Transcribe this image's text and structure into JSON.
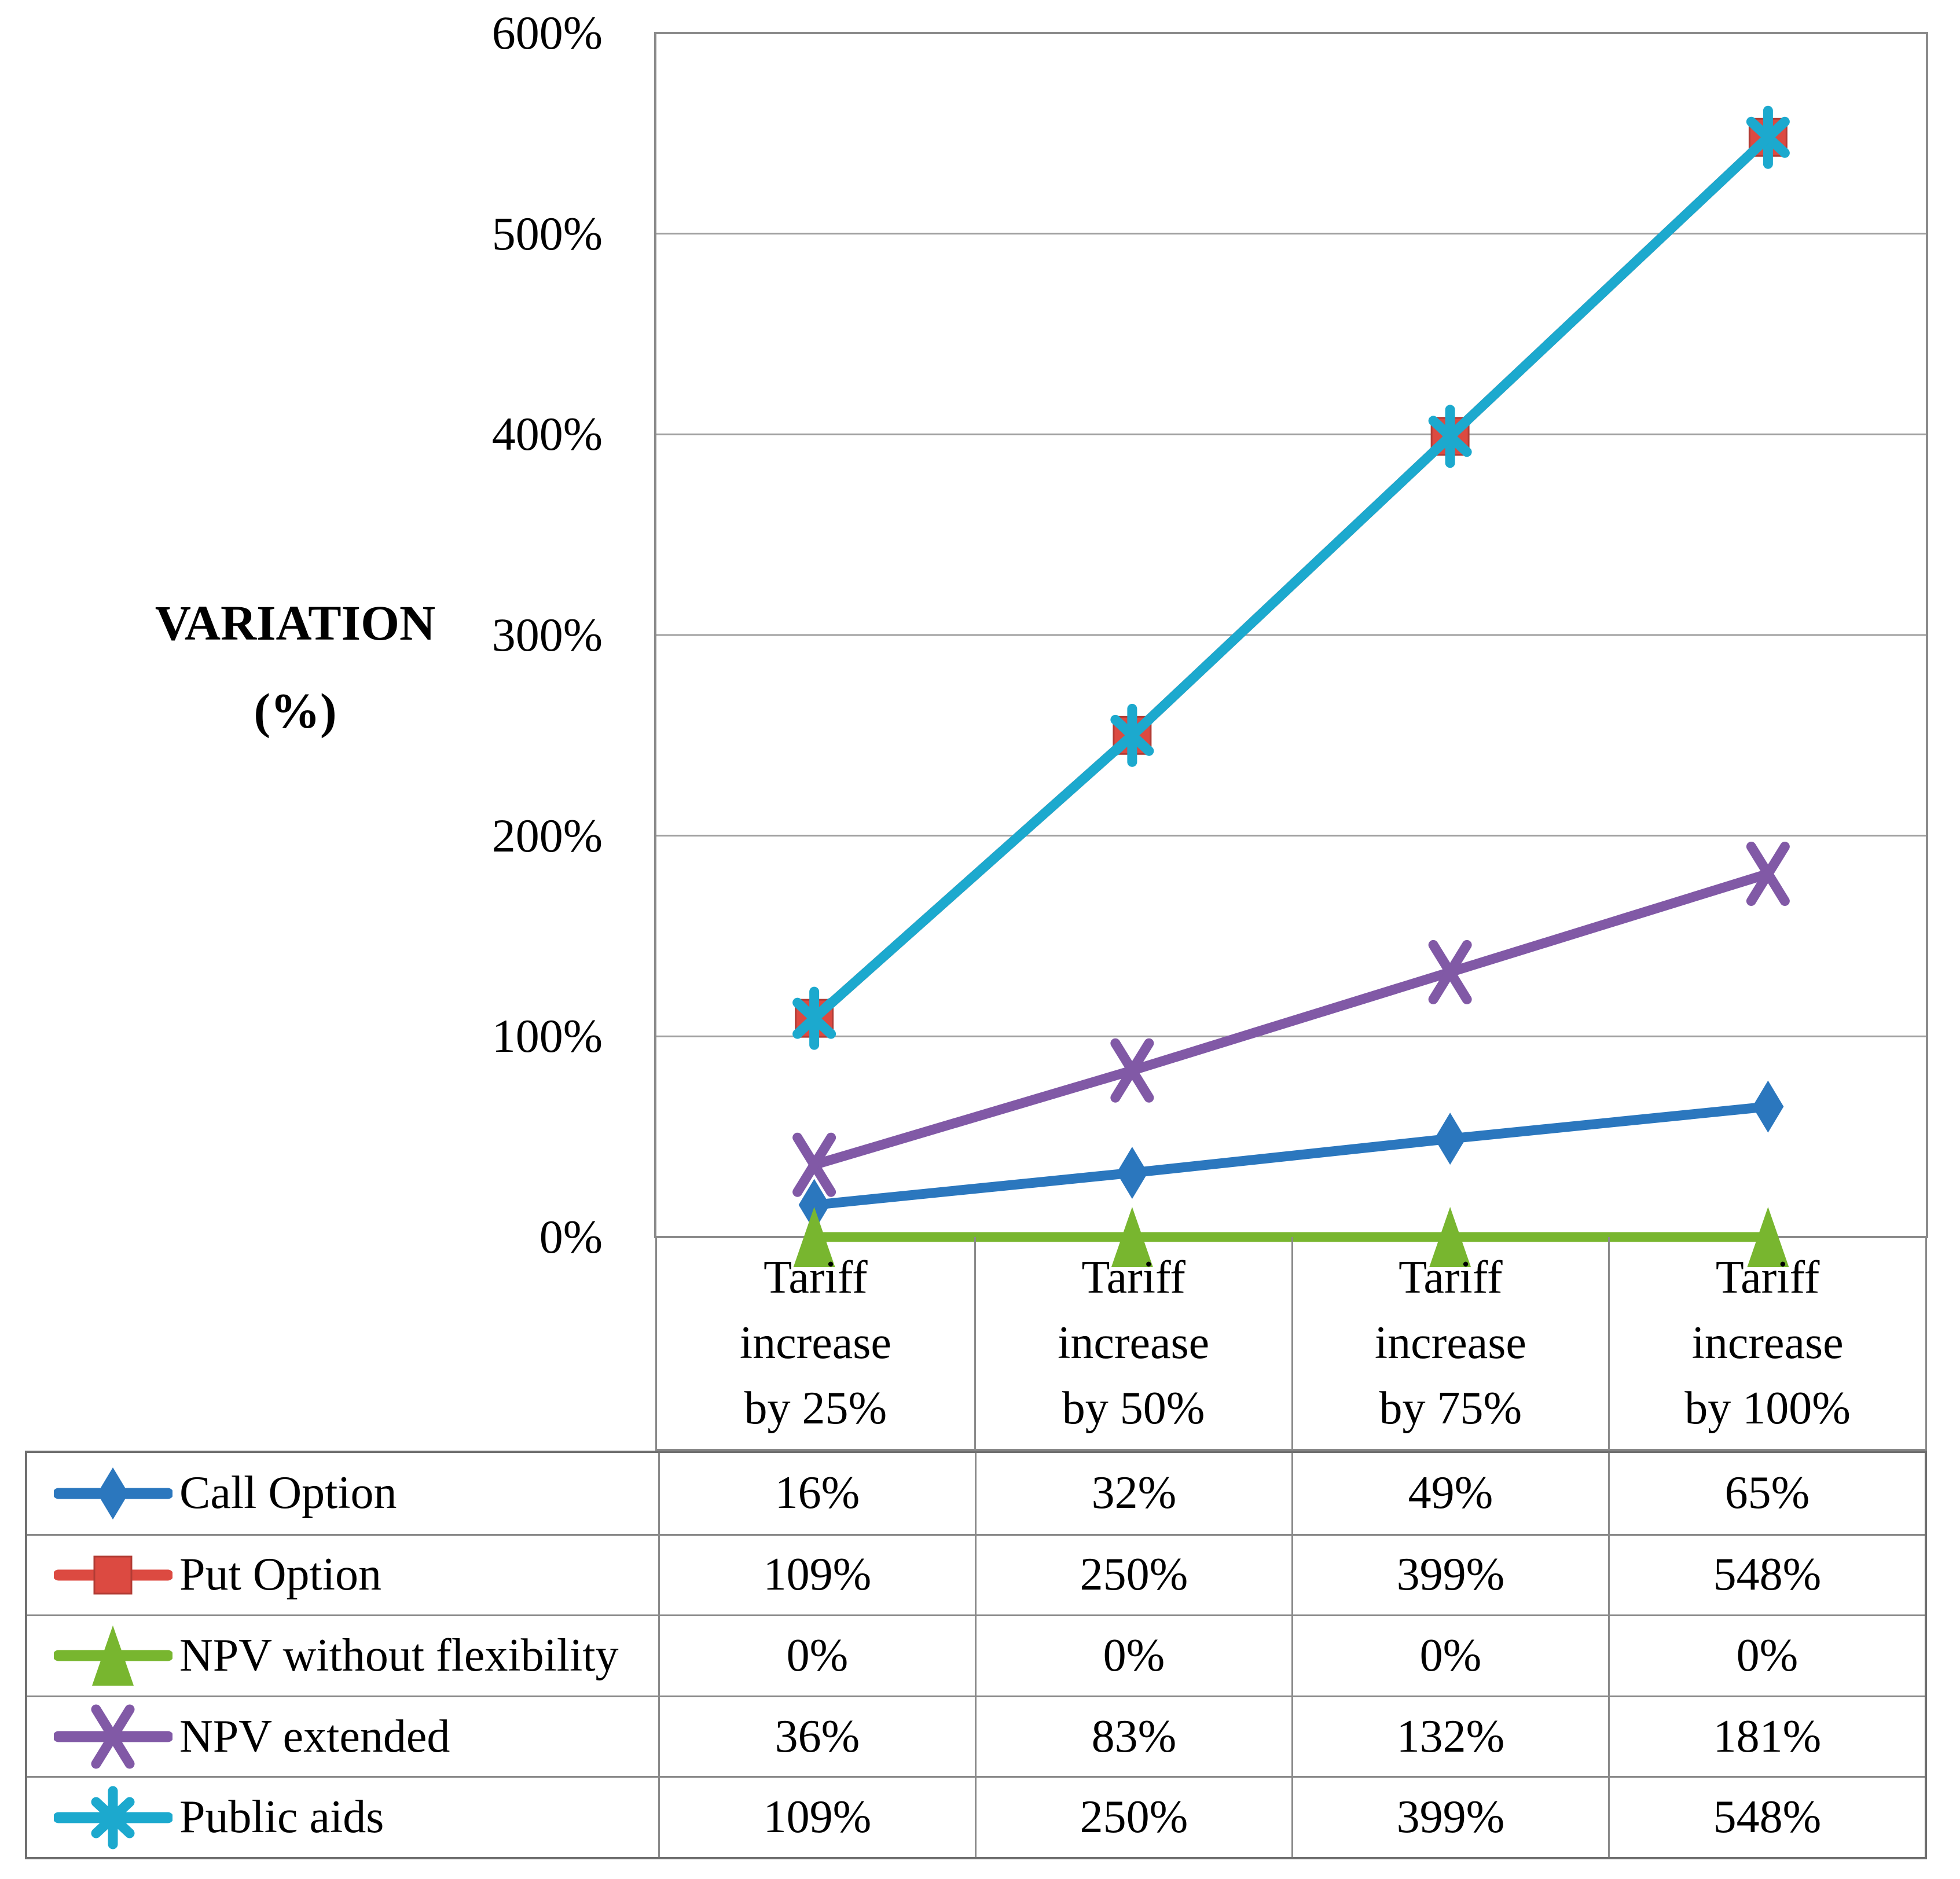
{
  "figure": {
    "axis_title_line1": "VARIATION",
    "axis_title_line2": "(%)"
  },
  "chart_data": {
    "type": "line",
    "title": "",
    "xlabel": "",
    "ylabel": "VARIATION (%)",
    "ylim": [
      0,
      600
    ],
    "y_tick_step": 100,
    "y_tick_labels": [
      "0%",
      "100%",
      "200%",
      "300%",
      "400%",
      "500%",
      "600%"
    ],
    "grid": "horizontal",
    "legend_position": "table-left",
    "categories": [
      "Tariff increase by 25%",
      "Tariff increase by 50%",
      "Tariff increase by 75%",
      "Tariff increase by 100%"
    ],
    "categories_lines": [
      [
        "Tariff",
        "increase",
        "by 25%"
      ],
      [
        "Tariff",
        "increase",
        "by 50%"
      ],
      [
        "Tariff",
        "increase",
        "by 75%"
      ],
      [
        "Tariff",
        "increase",
        "by 100%"
      ]
    ],
    "series": [
      {
        "name": "Call Option",
        "marker": "diamond",
        "color": "#2b77be",
        "values": [
          16,
          32,
          49,
          65
        ],
        "display_values": [
          "16%",
          "32%",
          "49%",
          "65%"
        ]
      },
      {
        "name": "Put Option",
        "marker": "square",
        "color": "#dc4a41",
        "values": [
          109,
          250,
          399,
          548
        ],
        "display_values": [
          "109%",
          "250%",
          "399%",
          "548%"
        ]
      },
      {
        "name": "NPV without flexibility",
        "marker": "triangle",
        "color": "#78b62f",
        "values": [
          0,
          0,
          0,
          0
        ],
        "display_values": [
          "0%",
          "0%",
          "0%",
          "0%"
        ]
      },
      {
        "name": "NPV extended",
        "marker": "x",
        "color": "#8159a6",
        "values": [
          36,
          83,
          132,
          181
        ],
        "display_values": [
          "36%",
          "83%",
          "132%",
          "181%"
        ]
      },
      {
        "name": "Public aids",
        "marker": "asterisk",
        "color": "#1ca9ce",
        "values": [
          109,
          250,
          399,
          548
        ],
        "display_values": [
          "109%",
          "250%",
          "399%",
          "548%"
        ]
      }
    ],
    "colors": {
      "gridline": "#a0a0a0",
      "plot_border": "#8a8a8a",
      "table_border": "#6f6f6f"
    }
  }
}
